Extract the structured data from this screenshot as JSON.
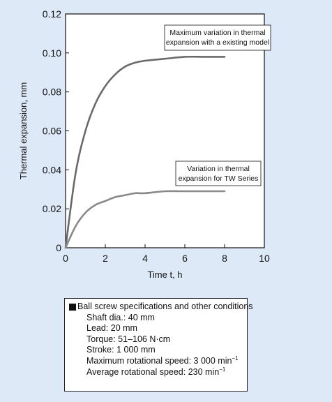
{
  "chart_data": {
    "type": "line",
    "xlabel": "Time t, h",
    "ylabel": "Thermal expansion, mm",
    "xlim": [
      0,
      10
    ],
    "ylim": [
      0,
      0.12
    ],
    "x_ticks": [
      "0",
      "2",
      "4",
      "6",
      "8",
      "10"
    ],
    "y_ticks": [
      "0",
      "0.02",
      "0.04",
      "0.06",
      "0.08",
      "0.10",
      "0.12"
    ],
    "grid": false,
    "colors": {
      "existing": "#6a6a6a",
      "tw": "#8a8a8a",
      "background": "#dde9f7"
    },
    "series": [
      {
        "key": "existing",
        "x": [
          0,
          0.5,
          1,
          1.5,
          2,
          2.5,
          3,
          3.5,
          4,
          5,
          6,
          7,
          8
        ],
        "values": [
          0,
          0.038,
          0.06,
          0.074,
          0.083,
          0.089,
          0.093,
          0.095,
          0.096,
          0.097,
          0.098,
          0.098,
          0.098
        ]
      },
      {
        "key": "tw",
        "x": [
          0,
          0.5,
          1,
          1.5,
          2,
          2.5,
          3,
          3.5,
          4,
          5,
          6,
          7,
          8
        ],
        "values": [
          0,
          0.011,
          0.018,
          0.022,
          0.024,
          0.026,
          0.027,
          0.028,
          0.028,
          0.029,
          0.029,
          0.029,
          0.029
        ]
      }
    ],
    "annotations": [
      {
        "key": "existing",
        "lines": [
          "Maximum variation in thermal",
          "expansion with a existing model"
        ]
      },
      {
        "key": "tw",
        "lines": [
          "Variation in thermal",
          "expansion for TW Series"
        ]
      }
    ]
  },
  "specs": {
    "title": "Ball screw specifications and other conditions",
    "items": [
      {
        "text": "Shaft dia.: 40 mm"
      },
      {
        "text": "Lead: 20 mm"
      },
      {
        "text": "Torque: 51–106 N·cm"
      },
      {
        "text": "Stroke: 1 000 mm"
      },
      {
        "text": "Maximum rotational speed: 3 000 min",
        "sup": "−1"
      },
      {
        "text": "Average rotational speed: 230 min",
        "sup": "−1"
      }
    ]
  }
}
